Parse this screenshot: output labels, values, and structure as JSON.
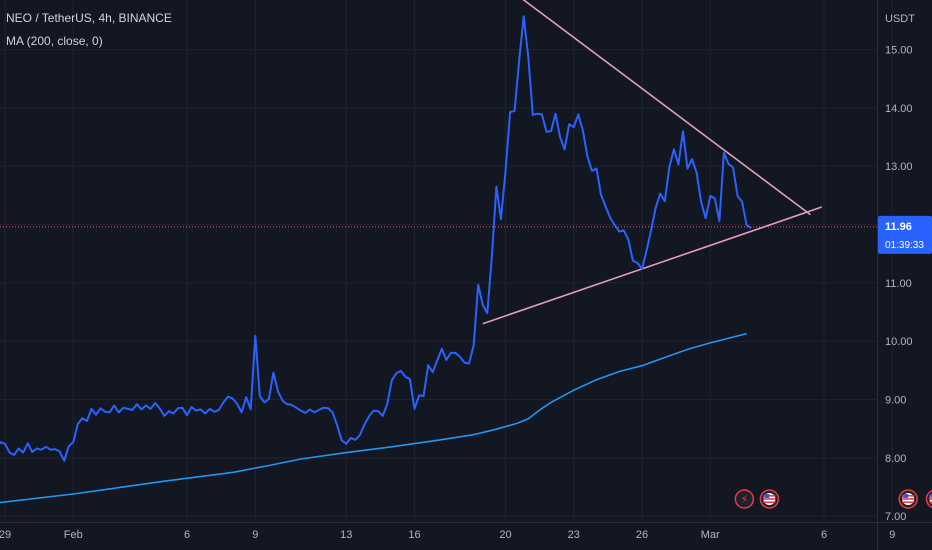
{
  "legend": {
    "symbol": "NEO / TetherUS, 4h, BINANCE",
    "indicator": "MA (200, close, 0)"
  },
  "colors": {
    "background": "#131722",
    "grid": "#1f2330",
    "price_line": "#2962ff",
    "ma_line": "#2196f3",
    "trendline": "#e59dbd",
    "current_price_tag": "#2962ff",
    "current_price_dotted": "#f7525f",
    "event_red": "#f23645"
  },
  "price_axis": {
    "unit": "USDT",
    "current_price": "11.96",
    "countdown": "01:39:33"
  },
  "event_icons": [
    {
      "name": "lightning-event-icon",
      "glyph": "⚡",
      "day": 32.5
    },
    {
      "name": "us-flag-event-icon",
      "glyph": "",
      "day": 33.6
    },
    {
      "name": "us-flag-event-icon",
      "glyph": "",
      "day": 39.7
    },
    {
      "name": "us-flag-event-icon",
      "glyph": "",
      "day": 40.9
    }
  ],
  "chart_data": {
    "type": "line",
    "x_unit": "date (Jan 29 – Mar 9)",
    "ylim": [
      6.9,
      15.85
    ],
    "y_ticks": [
      "7.00",
      "8.00",
      "9.00",
      "10.00",
      "11.00",
      "12.00",
      "13.00",
      "14.00",
      "15.00"
    ],
    "x_ticks": [
      {
        "label": "29",
        "day": 0
      },
      {
        "label": "Feb",
        "day": 3
      },
      {
        "label": "6",
        "day": 8
      },
      {
        "label": "9",
        "day": 11
      },
      {
        "label": "13",
        "day": 15
      },
      {
        "label": "16",
        "day": 18
      },
      {
        "label": "20",
        "day": 22
      },
      {
        "label": "23",
        "day": 25
      },
      {
        "label": "26",
        "day": 28
      },
      {
        "label": "Mar",
        "day": 31
      },
      {
        "label": "6",
        "day": 36
      },
      {
        "label": "9",
        "day": 39
      }
    ],
    "grid": true,
    "series": [
      {
        "name": "",
        "role": "price",
        "points": [
          [
            -1.4,
            8.47
          ],
          [
            -1.2,
            8.43
          ],
          [
            -1.0,
            8.47
          ],
          [
            -0.8,
            8.41
          ],
          [
            -0.6,
            8.31
          ],
          [
            -0.4,
            8.15
          ],
          [
            -0.2,
            8.27
          ],
          [
            0.0,
            8.24
          ],
          [
            0.2,
            8.09
          ],
          [
            0.4,
            8.05
          ],
          [
            0.6,
            8.16
          ],
          [
            0.8,
            8.09
          ],
          [
            1.0,
            8.25
          ],
          [
            1.2,
            8.1
          ],
          [
            1.4,
            8.16
          ],
          [
            1.6,
            8.14
          ],
          [
            1.8,
            8.19
          ],
          [
            2.0,
            8.14
          ],
          [
            2.2,
            8.15
          ],
          [
            2.4,
            8.11
          ],
          [
            2.6,
            7.95
          ],
          [
            2.8,
            8.2
          ],
          [
            3.0,
            8.27
          ],
          [
            3.2,
            8.58
          ],
          [
            3.4,
            8.68
          ],
          [
            3.6,
            8.63
          ],
          [
            3.8,
            8.84
          ],
          [
            4.0,
            8.74
          ],
          [
            4.2,
            8.85
          ],
          [
            4.4,
            8.79
          ],
          [
            4.6,
            8.78
          ],
          [
            4.8,
            8.9
          ],
          [
            5.0,
            8.78
          ],
          [
            5.2,
            8.86
          ],
          [
            5.4,
            8.84
          ],
          [
            5.6,
            8.82
          ],
          [
            5.8,
            8.92
          ],
          [
            6.0,
            8.83
          ],
          [
            6.2,
            8.9
          ],
          [
            6.4,
            8.84
          ],
          [
            6.6,
            8.94
          ],
          [
            6.8,
            8.85
          ],
          [
            7.0,
            8.72
          ],
          [
            7.2,
            8.8
          ],
          [
            7.4,
            8.76
          ],
          [
            7.6,
            8.85
          ],
          [
            7.8,
            8.86
          ],
          [
            8.0,
            8.73
          ],
          [
            8.2,
            8.87
          ],
          [
            8.4,
            8.81
          ],
          [
            8.6,
            8.83
          ],
          [
            8.8,
            8.76
          ],
          [
            9.0,
            8.84
          ],
          [
            9.2,
            8.79
          ],
          [
            9.4,
            8.82
          ],
          [
            9.6,
            8.95
          ],
          [
            9.8,
            9.05
          ],
          [
            10.0,
            9.02
          ],
          [
            10.2,
            8.93
          ],
          [
            10.4,
            8.78
          ],
          [
            10.6,
            9.04
          ],
          [
            10.8,
            8.83
          ],
          [
            11.0,
            10.09
          ],
          [
            11.2,
            9.06
          ],
          [
            11.4,
            8.95
          ],
          [
            11.6,
            9.01
          ],
          [
            11.8,
            9.46
          ],
          [
            12.0,
            9.14
          ],
          [
            12.2,
            8.98
          ],
          [
            12.4,
            8.92
          ],
          [
            12.6,
            8.91
          ],
          [
            12.8,
            8.86
          ],
          [
            13.0,
            8.81
          ],
          [
            13.2,
            8.77
          ],
          [
            13.4,
            8.83
          ],
          [
            13.6,
            8.78
          ],
          [
            13.8,
            8.82
          ],
          [
            14.0,
            8.86
          ],
          [
            14.2,
            8.85
          ],
          [
            14.4,
            8.78
          ],
          [
            14.6,
            8.56
          ],
          [
            14.8,
            8.3
          ],
          [
            15.0,
            8.24
          ],
          [
            15.2,
            8.34
          ],
          [
            15.4,
            8.31
          ],
          [
            15.6,
            8.39
          ],
          [
            15.8,
            8.57
          ],
          [
            16.0,
            8.71
          ],
          [
            16.2,
            8.81
          ],
          [
            16.4,
            8.8
          ],
          [
            16.6,
            8.72
          ],
          [
            16.8,
            8.92
          ],
          [
            17.0,
            9.33
          ],
          [
            17.2,
            9.45
          ],
          [
            17.4,
            9.49
          ],
          [
            17.6,
            9.39
          ],
          [
            17.8,
            9.35
          ],
          [
            18.0,
            8.84
          ],
          [
            18.2,
            9.07
          ],
          [
            18.4,
            9.06
          ],
          [
            18.6,
            9.59
          ],
          [
            18.8,
            9.47
          ],
          [
            19.0,
            9.67
          ],
          [
            19.2,
            9.87
          ],
          [
            19.4,
            9.68
          ],
          [
            19.6,
            9.8
          ],
          [
            19.8,
            9.8
          ],
          [
            20.0,
            9.73
          ],
          [
            20.2,
            9.63
          ],
          [
            20.4,
            9.62
          ],
          [
            20.6,
            9.93
          ],
          [
            20.8,
            10.97
          ],
          [
            21.0,
            10.62
          ],
          [
            21.2,
            10.48
          ],
          [
            21.4,
            11.44
          ],
          [
            21.6,
            12.65
          ],
          [
            21.8,
            12.09
          ],
          [
            22.0,
            12.91
          ],
          [
            22.2,
            13.93
          ],
          [
            22.4,
            13.95
          ],
          [
            22.6,
            14.8
          ],
          [
            22.8,
            15.57
          ],
          [
            23.0,
            14.87
          ],
          [
            23.2,
            13.88
          ],
          [
            23.4,
            13.9
          ],
          [
            23.6,
            13.89
          ],
          [
            23.8,
            13.59
          ],
          [
            24.0,
            13.6
          ],
          [
            24.2,
            13.9
          ],
          [
            24.4,
            13.5
          ],
          [
            24.6,
            13.29
          ],
          [
            24.8,
            13.72
          ],
          [
            25.0,
            13.67
          ],
          [
            25.2,
            13.89
          ],
          [
            25.4,
            13.61
          ],
          [
            25.6,
            13.17
          ],
          [
            25.8,
            12.92
          ],
          [
            26.0,
            12.96
          ],
          [
            26.2,
            12.51
          ],
          [
            26.4,
            12.31
          ],
          [
            26.6,
            12.12
          ],
          [
            26.8,
            11.99
          ],
          [
            27.0,
            11.88
          ],
          [
            27.2,
            11.9
          ],
          [
            27.4,
            11.74
          ],
          [
            27.6,
            11.38
          ],
          [
            27.8,
            11.34
          ],
          [
            28.0,
            11.24
          ],
          [
            28.2,
            11.55
          ],
          [
            28.4,
            11.9
          ],
          [
            28.6,
            12.28
          ],
          [
            28.8,
            12.53
          ],
          [
            29.0,
            12.4
          ],
          [
            29.2,
            12.98
          ],
          [
            29.4,
            13.29
          ],
          [
            29.6,
            13.03
          ],
          [
            29.8,
            13.6
          ],
          [
            30.0,
            12.96
          ],
          [
            30.2,
            13.12
          ],
          [
            30.4,
            12.89
          ],
          [
            30.6,
            12.39
          ],
          [
            30.8,
            12.11
          ],
          [
            31.0,
            12.49
          ],
          [
            31.2,
            12.45
          ],
          [
            31.4,
            12.06
          ],
          [
            31.6,
            13.23
          ],
          [
            31.8,
            13.04
          ],
          [
            32.0,
            12.98
          ],
          [
            32.2,
            12.49
          ],
          [
            32.4,
            12.39
          ],
          [
            32.6,
            11.99
          ],
          [
            32.8,
            11.94
          ]
        ]
      },
      {
        "name": "",
        "role": "ma",
        "points": [
          [
            -1.4,
            7.18
          ],
          [
            3.0,
            7.38
          ],
          [
            7.0,
            7.6
          ],
          [
            10.0,
            7.75
          ],
          [
            11.5,
            7.86
          ],
          [
            13.0,
            7.98
          ],
          [
            15.0,
            8.09
          ],
          [
            17.0,
            8.19
          ],
          [
            19.0,
            8.3
          ],
          [
            20.5,
            8.39
          ],
          [
            21.5,
            8.48
          ],
          [
            22.5,
            8.59
          ],
          [
            23.0,
            8.67
          ],
          [
            23.5,
            8.82
          ],
          [
            24.0,
            8.95
          ],
          [
            25.0,
            9.16
          ],
          [
            26.0,
            9.34
          ],
          [
            27.0,
            9.48
          ],
          [
            28.0,
            9.58
          ],
          [
            29.0,
            9.72
          ],
          [
            30.0,
            9.86
          ],
          [
            31.0,
            9.97
          ],
          [
            32.0,
            10.07
          ],
          [
            32.6,
            10.13
          ]
        ]
      }
    ],
    "trendlines": [
      {
        "from": [
          22.7,
          15.88
        ],
        "to": [
          35.4,
          12.17
        ]
      },
      {
        "from": [
          21.0,
          10.3
        ],
        "to": [
          35.9,
          12.3
        ]
      }
    ]
  }
}
